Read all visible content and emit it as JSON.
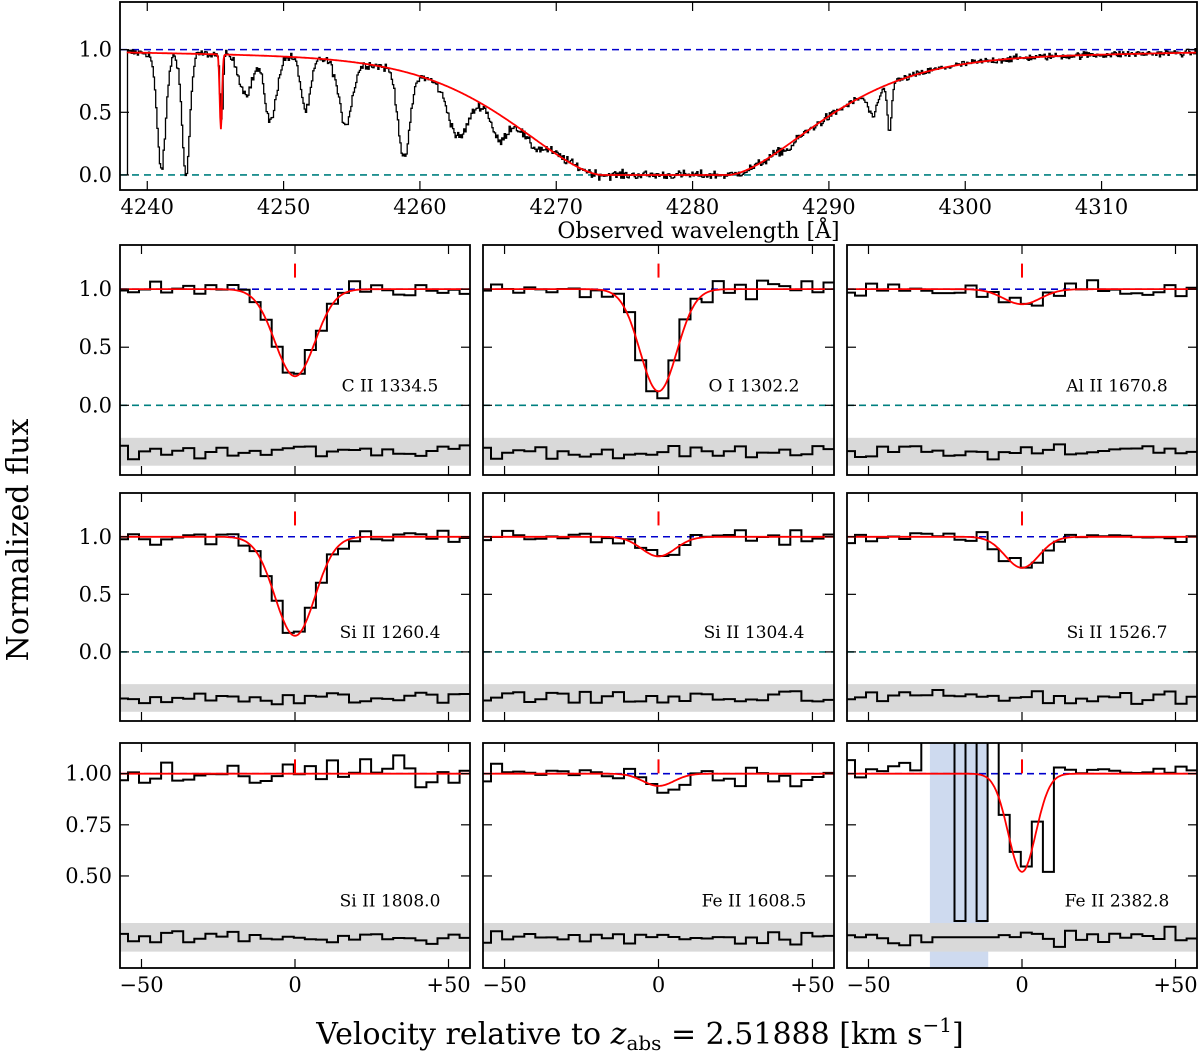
{
  "figure": {
    "ylabel": "Normalized flux",
    "xlabel_prefix": "Velocity relative to ",
    "xlabel_var": "z",
    "xlabel_sub": "abs",
    "xlabel_suffix": " = 2.51888 [km s",
    "xlabel_sup": "−1",
    "xlabel_end": "]"
  },
  "chart_data": [
    {
      "type": "line",
      "id": "overview",
      "xlabel": "Observed wavelength [Å]",
      "xlim": [
        4238,
        4317
      ],
      "ylim": [
        -0.12,
        1.38
      ],
      "xticks": [
        4240,
        4250,
        4260,
        4270,
        4280,
        4290,
        4300,
        4310
      ],
      "yticks": [
        0.0,
        0.5,
        1.0
      ],
      "yticklabels": [
        "0.0",
        "0.5",
        "1.0"
      ],
      "continuum": 1.0,
      "zero": 0.0,
      "model": {
        "dla_center": 4278.0,
        "dla_halfwidth": 8.5,
        "extra_line": {
          "x": 4245.4,
          "depth": 0.62
        }
      },
      "features": [
        {
          "x": 4241.0,
          "depth": 0.95,
          "w": 0.45
        },
        {
          "x": 4242.8,
          "depth": 1.0,
          "w": 0.4
        },
        {
          "x": 4245.4,
          "depth": 0.55,
          "w": 0.15
        },
        {
          "x": 4247.2,
          "depth": 0.32,
          "w": 0.7
        },
        {
          "x": 4249.0,
          "depth": 0.55,
          "w": 0.6
        },
        {
          "x": 4251.6,
          "depth": 0.45,
          "w": 0.5
        },
        {
          "x": 4254.5,
          "depth": 0.55,
          "w": 0.7
        },
        {
          "x": 4258.8,
          "depth": 0.85,
          "w": 0.6
        },
        {
          "x": 4262.8,
          "depth": 0.55,
          "w": 1.0
        },
        {
          "x": 4265.8,
          "depth": 0.45,
          "w": 0.7
        },
        {
          "x": 4268.4,
          "depth": 0.25,
          "w": 0.8
        },
        {
          "x": 4287.0,
          "depth": 0.15,
          "w": 0.5
        },
        {
          "x": 4293.2,
          "depth": 0.3,
          "w": 0.5
        },
        {
          "x": 4294.4,
          "depth": 0.55,
          "w": 0.2
        }
      ]
    },
    {
      "type": "line",
      "id": "cii",
      "ion": "C II 1334.5",
      "xlim": [
        -57,
        57
      ],
      "ylim": [
        -0.6,
        1.38
      ],
      "xticks": [
        -50,
        0,
        50
      ],
      "xticklabels": [
        "−50",
        "0",
        "+50"
      ],
      "yticks": [
        0.0,
        0.5,
        1.0
      ],
      "yticklabels": [
        "0.0",
        "0.5",
        "1.0"
      ],
      "model": {
        "v0": 0,
        "depth": 0.75,
        "sigma": 6.5
      }
    },
    {
      "type": "line",
      "id": "oi",
      "ion": "O I 1302.2",
      "xlim": [
        -57,
        57
      ],
      "ylim": [
        -0.6,
        1.38
      ],
      "xticks": [
        -50,
        0,
        50
      ],
      "xticklabels": [
        "−50",
        "0",
        "+50"
      ],
      "yticks": [
        0.0,
        0.5,
        1.0
      ],
      "yticklabels": [
        "0.0",
        "0.5",
        "1.0"
      ],
      "model": {
        "v0": 0,
        "depth": 0.88,
        "sigma": 6.0
      }
    },
    {
      "type": "line",
      "id": "alii",
      "ion": "Al II 1670.8",
      "xlim": [
        -57,
        57
      ],
      "ylim": [
        -0.6,
        1.38
      ],
      "xticks": [
        -50,
        0,
        50
      ],
      "xticklabels": [
        "−50",
        "0",
        "+50"
      ],
      "yticks": [
        0.0,
        0.5,
        1.0
      ],
      "yticklabels": [
        "0.0",
        "0.5",
        "1.0"
      ],
      "model": {
        "v0": 0,
        "depth": 0.13,
        "sigma": 6.0
      }
    },
    {
      "type": "line",
      "id": "sii1",
      "ion": "Si II 1260.4",
      "xlim": [
        -57,
        57
      ],
      "ylim": [
        -0.6,
        1.38
      ],
      "xticks": [
        -50,
        0,
        50
      ],
      "xticklabels": [
        "−50",
        "0",
        "+50"
      ],
      "yticks": [
        0.0,
        0.5,
        1.0
      ],
      "yticklabels": [
        "0.0",
        "0.5",
        "1.0"
      ],
      "model": {
        "v0": 0,
        "depth": 0.86,
        "sigma": 6.5
      }
    },
    {
      "type": "line",
      "id": "sii2",
      "ion": "Si II 1304.4",
      "xlim": [
        -57,
        57
      ],
      "ylim": [
        -0.6,
        1.38
      ],
      "xticks": [
        -50,
        0,
        50
      ],
      "xticklabels": [
        "−50",
        "0",
        "+50"
      ],
      "yticks": [
        0.0,
        0.5,
        1.0
      ],
      "yticklabels": [
        "0.0",
        "0.5",
        "1.0"
      ],
      "model": {
        "v0": 0,
        "depth": 0.17,
        "sigma": 5.5
      }
    },
    {
      "type": "line",
      "id": "sii3",
      "ion": "Si II 1526.7",
      "xlim": [
        -57,
        57
      ],
      "ylim": [
        -0.6,
        1.38
      ],
      "xticks": [
        -50,
        0,
        50
      ],
      "xticklabels": [
        "−50",
        "0",
        "+50"
      ],
      "yticks": [
        0.0,
        0.5,
        1.0
      ],
      "yticklabels": [
        "0.0",
        "0.5",
        "1.0"
      ],
      "model": {
        "v0": 0,
        "depth": 0.27,
        "sigma": 5.5
      }
    },
    {
      "type": "line",
      "id": "sii4",
      "ion": "Si II 1808.0",
      "xlim": [
        -57,
        57
      ],
      "ylim": [
        0.05,
        1.15
      ],
      "xticks": [
        -50,
        0,
        50
      ],
      "xticklabels": [
        "−50",
        "0",
        "+50"
      ],
      "yticks": [
        0.5,
        0.75,
        1.0
      ],
      "yticklabels": [
        "0.50",
        "0.75",
        "1.00"
      ],
      "model": {
        "v0": 0,
        "depth": 0.0,
        "sigma": 5.0
      }
    },
    {
      "type": "line",
      "id": "feii1",
      "ion": "Fe II 1608.5",
      "xlim": [
        -57,
        57
      ],
      "ylim": [
        0.05,
        1.15
      ],
      "xticks": [
        -50,
        0,
        50
      ],
      "xticklabels": [
        "−50",
        "0",
        "+50"
      ],
      "yticks": [
        0.5,
        0.75,
        1.0
      ],
      "yticklabels": [
        "0.50",
        "0.75",
        "1.00"
      ],
      "model": {
        "v0": 0,
        "depth": 0.06,
        "sigma": 5.0
      }
    },
    {
      "type": "line",
      "id": "feii2",
      "ion": "Fe II 2382.8",
      "xlim": [
        -57,
        57
      ],
      "ylim": [
        0.05,
        1.15
      ],
      "xticks": [
        -50,
        0,
        50
      ],
      "xticklabels": [
        "−50",
        "0",
        "+50"
      ],
      "yticks": [
        0.5,
        0.75,
        1.0
      ],
      "yticklabels": [
        "0.50",
        "0.75",
        "1.00"
      ],
      "model": {
        "v0": 0,
        "depth": 0.48,
        "sigma": 4.5
      },
      "masked_range": [
        -30,
        -11
      ]
    }
  ],
  "colors": {
    "data": "#000000",
    "model": "#ff0000",
    "continuum": "#0000cc",
    "zero": "#008080",
    "residual_band": "#d9d9d9",
    "mask": "#c6d3ec"
  }
}
